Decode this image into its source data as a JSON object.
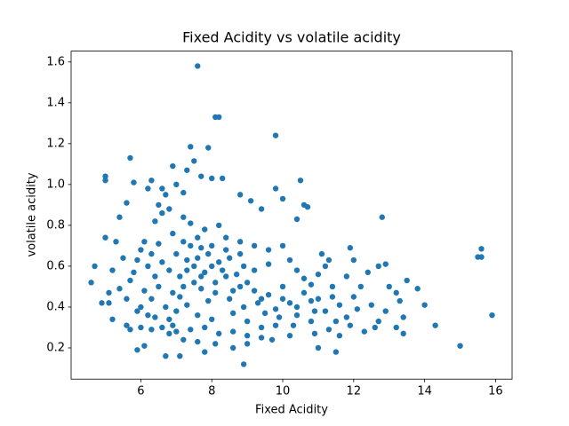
{
  "chart_data": {
    "type": "scatter",
    "title": "Fixed Acidity vs volatile acidity",
    "x_label": "Fixed Acidity",
    "y_label": "volatile acidity",
    "color": "#1f77b4",
    "xlim": [
      4.035,
      16.465
    ],
    "ylim": [
      0.047,
      1.653
    ],
    "xticks": [
      6,
      8,
      10,
      12,
      14,
      16
    ],
    "yticks": [
      0.2,
      0.4,
      0.6,
      0.8,
      {
        "value": 1,
        "label": "1.0"
      },
      1.2,
      1.4,
      1.6
    ],
    "x": [
      7.6,
      8.1,
      8.2,
      9.8,
      7.4,
      7.9,
      5.7,
      7.5,
      6.9,
      7.3,
      15.6,
      15.5,
      15.6,
      15.9,
      15.0,
      14.3,
      14.0,
      13.8,
      12.8,
      10.5,
      8.9,
      4.6,
      4.7,
      5.0,
      5.0,
      5.8,
      6.7,
      7.1,
      7.8,
      11.5,
      11.0,
      5.9,
      6.1,
      5.0,
      5.3,
      5.4,
      5.6,
      5.5,
      5.2,
      5.1,
      4.9,
      5.1,
      5.2,
      5.4,
      5.6,
      5.7,
      5.8,
      6.0,
      6.2,
      6.3,
      6.5,
      6.6,
      6.7,
      6.8,
      7.0,
      7.2,
      7.7,
      8.0,
      8.3,
      8.8,
      9.1,
      9.4,
      9.8,
      10.0,
      10.6,
      10.7,
      10.4,
      11.1,
      11.3,
      11.9,
      12.0,
      12.4,
      12.7,
      12.9,
      13.0,
      13.2,
      13.5,
      13.3,
      13.4,
      13.2,
      13.4,
      12.9,
      12.6,
      12.3,
      11.9,
      11.6,
      11.3,
      10.9,
      10.2,
      9.7,
      9.0,
      8.6,
      8.1,
      7.6,
      7.2,
      6.8,
      6.3,
      6.0,
      6.4,
      6.9,
      6.2,
      6.4,
      6.6,
      6.8,
      7.0,
      7.2,
      7.4,
      7.6,
      7.8,
      8.0,
      6.1,
      6.3,
      6.5,
      6.7,
      6.9,
      7.1,
      7.3,
      7.5,
      7.7,
      7.9,
      8.2,
      8.4,
      8.6,
      8.8,
      9.0,
      9.2,
      9.4,
      9.6,
      9.8,
      10.0,
      10.2,
      10.4,
      10.6,
      10.8,
      11.0,
      11.2,
      11.4,
      11.6,
      11.8,
      12.0,
      6.0,
      6.2,
      6.4,
      6.6,
      6.8,
      7.0,
      7.2,
      7.4,
      7.6,
      7.8,
      8.0,
      8.2,
      8.4,
      8.6,
      8.8,
      9.0,
      9.2,
      9.4,
      9.6,
      9.8,
      10.0,
      10.2,
      10.4,
      10.6,
      10.8,
      11.0,
      11.2,
      11.4,
      11.8,
      12.2,
      12.5,
      12.1,
      12.7,
      11.5,
      10.9,
      10.3,
      9.9,
      9.5,
      9.3,
      8.9,
      8.5,
      8.1,
      7.7,
      7.3,
      6.9,
      6.5,
      6.3,
      6.1,
      5.9,
      5.7,
      5.6,
      5.9,
      6.6,
      7.0,
      7.4,
      7.8,
      8.2,
      8.6,
      9.0,
      9.4,
      7.1,
      7.3,
      7.5,
      7.7,
      7.9,
      8.1,
      8.3,
      8.5,
      8.7,
      8.9,
      7.2,
      7.6,
      8.0,
      8.4,
      8.8,
      9.2,
      9.6,
      10.0,
      10.4,
      10.8
    ],
    "values": [
      1.58,
      1.33,
      1.33,
      1.24,
      1.185,
      1.18,
      1.13,
      1.115,
      1.09,
      1.07,
      0.685,
      0.645,
      0.645,
      0.36,
      0.21,
      0.31,
      0.41,
      0.49,
      0.84,
      1.02,
      0.12,
      0.52,
      0.6,
      1.04,
      1.02,
      1.01,
      0.16,
      0.16,
      0.18,
      0.18,
      0.2,
      0.19,
      0.21,
      0.74,
      0.72,
      0.84,
      0.91,
      0.64,
      0.58,
      0.47,
      0.42,
      0.42,
      0.34,
      0.49,
      0.31,
      0.29,
      0.57,
      0.68,
      0.98,
      1.02,
      0.9,
      0.98,
      0.95,
      0.88,
      1.0,
      0.96,
      1.04,
      1.03,
      1.03,
      0.95,
      0.92,
      0.88,
      0.98,
      0.93,
      0.9,
      0.89,
      0.83,
      0.66,
      0.63,
      0.69,
      0.63,
      0.57,
      0.6,
      0.61,
      0.5,
      0.47,
      0.53,
      0.43,
      0.35,
      0.3,
      0.27,
      0.38,
      0.3,
      0.28,
      0.31,
      0.26,
      0.29,
      0.27,
      0.26,
      0.24,
      0.22,
      0.2,
      0.22,
      0.23,
      0.24,
      0.27,
      0.29,
      0.3,
      0.35,
      0.31,
      0.6,
      0.55,
      0.62,
      0.58,
      0.66,
      0.5,
      0.7,
      0.64,
      0.57,
      0.6,
      0.48,
      0.44,
      0.71,
      0.4,
      0.76,
      0.45,
      0.58,
      0.52,
      0.69,
      0.43,
      0.62,
      0.55,
      0.48,
      0.66,
      0.52,
      0.58,
      0.44,
      0.61,
      0.39,
      0.5,
      0.42,
      0.36,
      0.47,
      0.33,
      0.44,
      0.38,
      0.5,
      0.41,
      0.35,
      0.45,
      0.4,
      0.36,
      0.82,
      0.86,
      0.34,
      0.38,
      0.84,
      0.81,
      0.36,
      0.78,
      0.34,
      0.8,
      0.74,
      0.37,
      0.72,
      0.33,
      0.7,
      0.3,
      0.68,
      0.31,
      0.7,
      0.63,
      0.58,
      0.54,
      0.51,
      0.56,
      0.6,
      0.45,
      0.55,
      0.5,
      0.41,
      0.39,
      0.33,
      0.33,
      0.38,
      0.31,
      0.35,
      0.37,
      0.42,
      0.4,
      0.44,
      0.47,
      0.49,
      0.41,
      0.47,
      0.5,
      0.66,
      0.72,
      0.63,
      0.53,
      0.44,
      0.38,
      0.3,
      0.28,
      0.29,
      0.3,
      0.27,
      0.28,
      0.26,
      0.25,
      0.55,
      0.63,
      0.6,
      0.55,
      0.66,
      0.52,
      0.58,
      0.64,
      0.56,
      0.6,
      0.72,
      0.74,
      0.7,
      0.68,
      0.5,
      0.48,
      0.46,
      0.44,
      0.4,
      0.43
    ]
  }
}
